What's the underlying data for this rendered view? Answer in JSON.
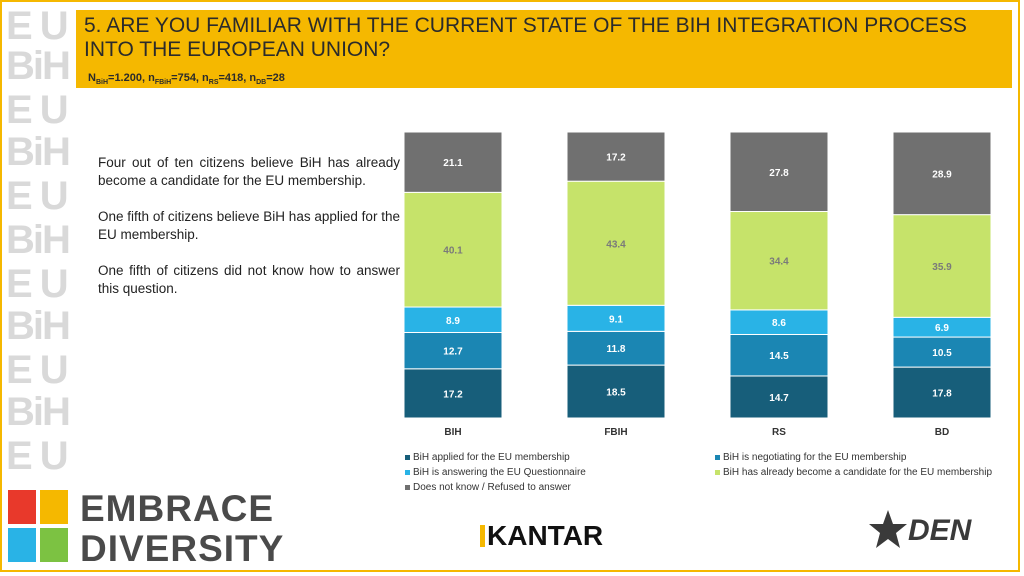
{
  "header": {
    "title": "5. ARE YOU FAMILIAR WITH THE CURRENT STATE OF THE BIH INTEGRATION PROCESS INTO THE EUROPEAN UNION?",
    "n_bih_label": "N",
    "n_bih_sub": "BiH",
    "n_bih_val": "=1.200, n",
    "n_fbih_sub": "FBiH",
    "n_fbih_val": "=754, n",
    "n_rs_sub": "RS",
    "n_rs_val": "=418, n",
    "n_db_sub": "DB",
    "n_db_val": "=28"
  },
  "bullets": [
    "Four out of ten citizens believe BiH has already become a candidate for the EU membership.",
    "One fifth of citizens believe BiH has applied for the EU membership.",
    "One fifth of citizens did not know how to answer this question."
  ],
  "branding": {
    "side_marks": "EU BiH",
    "left_logo_line1": "EMBRACE",
    "left_logo_line2": "DIVERSITY",
    "kantar": "KANTAR",
    "den": "DEN"
  },
  "colors": {
    "accent": "#f5b800",
    "applied": "#175e7a",
    "negotiating": "#1b86b3",
    "questionnaire": "#29b3e6",
    "candidate": "#c6e36a",
    "dontknow": "#707070"
  },
  "chart_data": {
    "type": "bar",
    "stacked": true,
    "categories": [
      "BIH",
      "FBIH",
      "RS",
      "BD"
    ],
    "series": [
      {
        "name": "BiH applied for the EU membership",
        "key": "applied",
        "values": [
          17.2,
          18.5,
          14.7,
          17.8
        ]
      },
      {
        "name": "BiH is negotiating for the EU membership",
        "key": "negotiating",
        "values": [
          12.7,
          11.8,
          14.5,
          10.5
        ]
      },
      {
        "name": "BiH is answering the EU Questionnaire",
        "key": "questionnaire",
        "values": [
          8.9,
          9.1,
          8.6,
          6.9
        ]
      },
      {
        "name": "BiH has already become a candidate for the EU membership",
        "key": "candidate",
        "values": [
          40.1,
          43.4,
          34.4,
          35.9
        ]
      },
      {
        "name": "Does not know / Refused to answer",
        "key": "dontknow",
        "values": [
          21.1,
          17.2,
          27.8,
          28.9
        ]
      }
    ],
    "ylim": [
      0,
      100
    ],
    "legend_position": "bottom"
  }
}
